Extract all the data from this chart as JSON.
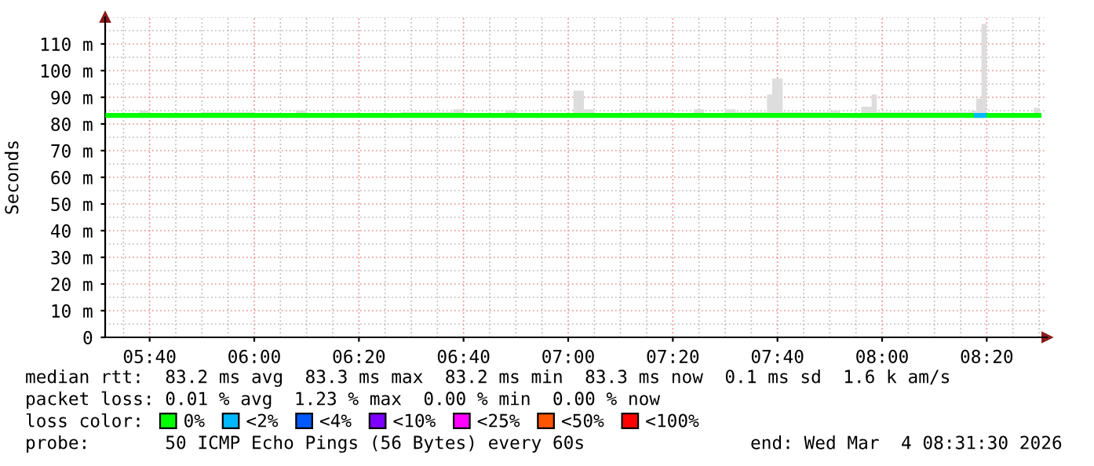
{
  "chart_data": {
    "type": "step",
    "ylabel": "Seconds",
    "xlim": [
      "2026-03-04T05:31:30",
      "2026-03-04T08:31:30"
    ],
    "xticks": [
      {
        "value": "2026-03-04T05:40",
        "label": "05:40"
      },
      {
        "value": "2026-03-04T06:00",
        "label": "06:00"
      },
      {
        "value": "2026-03-04T06:20",
        "label": "06:20"
      },
      {
        "value": "2026-03-04T06:40",
        "label": "06:40"
      },
      {
        "value": "2026-03-04T07:00",
        "label": "07:00"
      },
      {
        "value": "2026-03-04T07:20",
        "label": "07:20"
      },
      {
        "value": "2026-03-04T07:40",
        "label": "07:40"
      },
      {
        "value": "2026-03-04T08:00",
        "label": "08:00"
      },
      {
        "value": "2026-03-04T08:20",
        "label": "08:20"
      }
    ],
    "ylim": [
      0,
      120
    ],
    "yticks": [
      0,
      {
        "value": 10,
        "label": "10 m"
      },
      {
        "value": 20,
        "label": "20 m"
      },
      {
        "value": 30,
        "label": "30 m"
      },
      {
        "value": 40,
        "label": "40 m"
      },
      {
        "value": 50,
        "label": "50 m"
      },
      {
        "value": 60,
        "label": "60 m"
      },
      {
        "value": 70,
        "label": "70 m"
      },
      {
        "value": 80,
        "label": "80 m"
      },
      {
        "value": 90,
        "label": "90 m"
      },
      {
        "value": 100,
        "label": "100 m"
      },
      {
        "value": 110,
        "label": "110 m"
      }
    ],
    "grid": true,
    "legend": "bottom",
    "legend_title": "loss color:",
    "series": [
      {
        "name": "0%",
        "color": "#00ff00",
        "x": [
          "2026-03-04T05:32",
          "2026-03-04T05:38",
          "2026-03-04T05:40",
          "2026-03-04T05:50",
          "2026-03-04T06:00",
          "2026-03-04T06:08",
          "2026-03-04T06:10",
          "2026-03-04T06:20",
          "2026-03-04T06:28",
          "2026-03-04T06:38",
          "2026-03-04T06:40",
          "2026-03-04T06:48",
          "2026-03-04T06:50",
          "2026-03-04T07:00",
          "2026-03-04T07:01",
          "2026-03-04T07:03",
          "2026-03-04T07:05",
          "2026-03-04T07:12",
          "2026-03-04T07:20",
          "2026-03-04T07:24",
          "2026-03-04T07:26",
          "2026-03-04T07:30",
          "2026-03-04T07:32",
          "2026-03-04T07:38",
          "2026-03-04T07:39",
          "2026-03-04T07:41",
          "2026-03-04T07:48",
          "2026-03-04T07:50",
          "2026-03-04T07:52",
          "2026-03-04T07:56",
          "2026-03-04T07:58",
          "2026-03-04T07:59",
          "2026-03-04T08:05",
          "2026-03-04T08:10",
          "2026-03-04T08:17",
          "2026-03-04T08:18",
          "2026-03-04T08:19",
          "2026-03-04T08:20",
          "2026-03-04T08:25",
          "2026-03-04T08:29",
          "2026-03-04T08:30"
        ],
        "values": [
          83.2,
          83.2,
          83.2,
          83.2,
          83.2,
          83.2,
          83.2,
          83.2,
          83.2,
          83.2,
          83.2,
          83.2,
          83.2,
          83.2,
          83.2,
          83.2,
          83.2,
          83.2,
          83.2,
          83.2,
          83.2,
          83.2,
          83.2,
          83.2,
          83.2,
          83.2,
          83.2,
          83.2,
          83.2,
          83.2,
          83.2,
          83.2,
          83.2,
          83.2,
          83.2,
          83.2,
          83.2,
          83.2,
          83.2,
          83.2,
          83.2
        ],
        "lower": [
          83,
          83,
          83,
          83,
          83,
          83,
          83,
          83,
          83,
          83,
          83,
          83,
          83,
          83,
          83,
          83,
          83,
          83,
          83,
          83,
          83,
          83,
          83,
          83,
          83,
          83,
          83,
          83,
          83,
          83,
          83,
          83,
          83,
          83,
          83,
          83,
          83,
          83,
          83,
          83,
          83
        ],
        "upper": [
          84,
          85,
          84,
          84.5,
          84,
          85,
          84,
          84,
          84.5,
          85.5,
          84,
          85,
          84,
          84,
          92.5,
          85.5,
          84,
          84.5,
          84,
          85.5,
          84,
          85.5,
          84.5,
          91,
          97,
          84.5,
          84.5,
          85,
          84,
          86.5,
          91,
          84.5,
          84.5,
          84.5,
          85,
          89.5,
          117.5,
          84,
          84,
          86,
          86
        ]
      },
      {
        "name": "<2%",
        "color": "#00b8ff",
        "x": [
          "2026-03-04T08:18",
          "2026-03-04T08:19:30"
        ],
        "values": [
          83.2,
          83.2
        ]
      },
      {
        "name": "<4%",
        "color": "#0059ff"
      },
      {
        "name": "<10%",
        "color": "#7e00ff"
      },
      {
        "name": "<25%",
        "color": "#ff00ff"
      },
      {
        "name": "<50%",
        "color": "#ff5500"
      },
      {
        "name": "<100%",
        "color": "#ff0000"
      }
    ],
    "annotations": [
      "median rtt:  83.2 ms avg  83.3 ms max  83.2 ms min  83.3 ms now  0.1 ms sd  1.6 k am/s",
      "packet loss: 0.01 % avg  1.23 % max  0.00 % min  0.00 % now",
      "probe:       50 ICMP Echo Pings (56 Bytes) every 60s",
      "end: Wed Mar  4 08:31:30 2026"
    ]
  }
}
